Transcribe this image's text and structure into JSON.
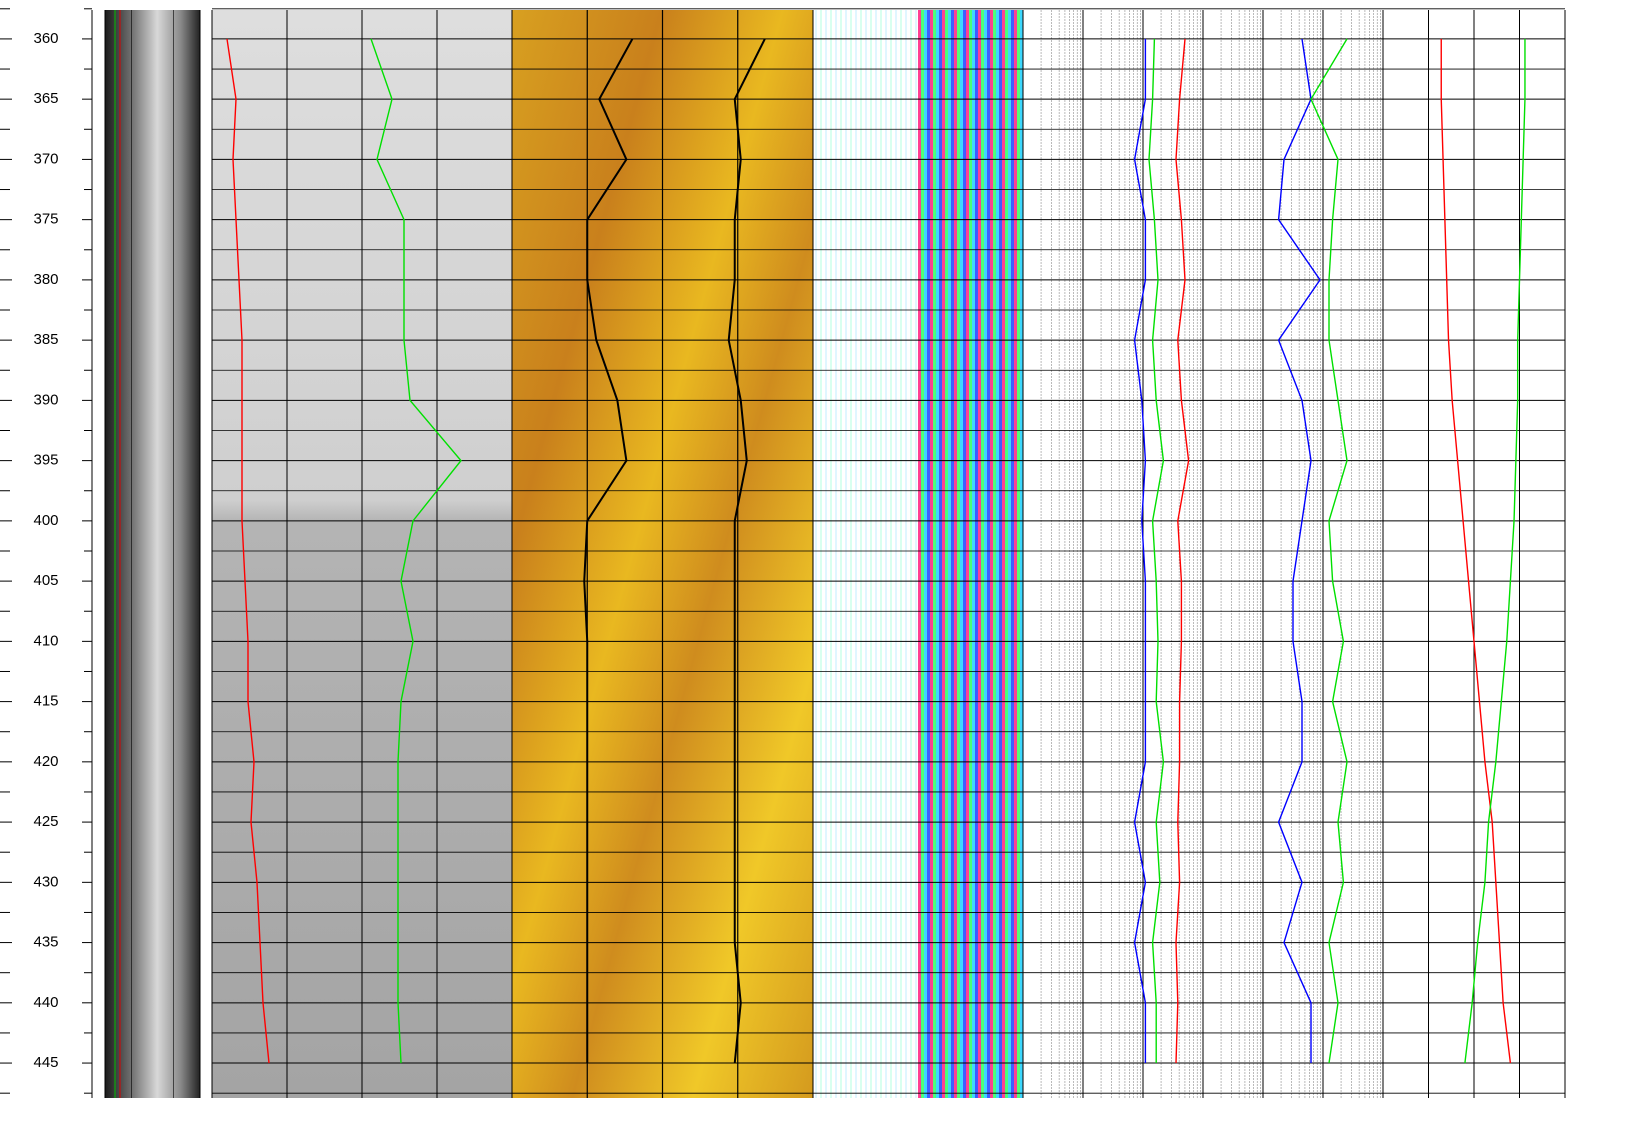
{
  "chart_data": {
    "type": "well-log",
    "ylim": [
      357.6,
      447.9
    ],
    "yticks": [
      360,
      365,
      370,
      375,
      380,
      385,
      390,
      395,
      400,
      405,
      410,
      415,
      420,
      425,
      430,
      435,
      440,
      445
    ],
    "minor_yticks": [
      357.5,
      362.5,
      367.5,
      372.5,
      377.5,
      382.5,
      387.5,
      392.5,
      397.5,
      402.5,
      407.5,
      412.5,
      417.5,
      422.5,
      427.5,
      432.5,
      437.5,
      442.5,
      447.5
    ],
    "xlim": [
      0,
      1
    ],
    "grid": true,
    "depths": [
      360,
      365,
      370,
      375,
      380,
      385,
      390,
      395,
      400,
      405,
      410,
      415,
      420,
      425,
      430,
      435,
      440,
      445
    ],
    "series": [
      {
        "track": 2,
        "color": "#ff0000",
        "values": [
          0.05,
          0.08,
          0.07,
          0.08,
          0.09,
          0.1,
          0.1,
          0.1,
          0.1,
          0.11,
          0.12,
          0.12,
          0.14,
          0.13,
          0.15,
          0.16,
          0.17,
          0.19
        ]
      },
      {
        "track": 2,
        "color": "#00e000",
        "values": [
          0.53,
          0.6,
          0.55,
          0.64,
          0.64,
          0.64,
          0.66,
          0.83,
          0.67,
          0.63,
          0.67,
          0.63,
          0.62,
          0.62,
          0.62,
          0.62,
          0.62,
          0.63
        ]
      },
      {
        "track": 3,
        "color": "#000000",
        "values": [
          0.4,
          0.29,
          0.38,
          0.25,
          0.25,
          0.28,
          0.35,
          0.38,
          0.25,
          0.24,
          0.25,
          0.25,
          0.25,
          0.25,
          0.25,
          0.25,
          0.25,
          0.25
        ]
      },
      {
        "track": 3,
        "color": "#000000",
        "values": [
          0.84,
          0.74,
          0.76,
          0.74,
          0.74,
          0.72,
          0.76,
          0.78,
          0.74,
          0.74,
          0.74,
          0.74,
          0.74,
          0.74,
          0.74,
          0.74,
          0.76,
          0.74
        ]
      },
      {
        "track": 5,
        "color": "#0000ff",
        "values": [
          0.68,
          0.68,
          0.62,
          0.68,
          0.68,
          0.62,
          0.66,
          0.68,
          0.66,
          0.68,
          0.68,
          0.68,
          0.68,
          0.62,
          0.68,
          0.62,
          0.68,
          0.68
        ]
      },
      {
        "track": 5,
        "color": "#00e000",
        "values": [
          0.73,
          0.72,
          0.7,
          0.73,
          0.75,
          0.72,
          0.74,
          0.78,
          0.72,
          0.74,
          0.75,
          0.74,
          0.78,
          0.74,
          0.76,
          0.72,
          0.74,
          0.74
        ]
      },
      {
        "track": 5,
        "color": "#ff0000",
        "values": [
          0.9,
          0.87,
          0.85,
          0.88,
          0.9,
          0.86,
          0.88,
          0.92,
          0.86,
          0.88,
          0.88,
          0.87,
          0.87,
          0.86,
          0.87,
          0.85,
          0.86,
          0.85
        ]
      },
      {
        "track": 6,
        "color": "#0000ff",
        "values": [
          0.55,
          0.6,
          0.45,
          0.42,
          0.65,
          0.42,
          0.55,
          0.6,
          0.55,
          0.5,
          0.5,
          0.55,
          0.55,
          0.42,
          0.55,
          0.45,
          0.6,
          0.6
        ]
      },
      {
        "track": 6,
        "color": "#00e000",
        "values": [
          0.8,
          0.6,
          0.75,
          0.72,
          0.7,
          0.7,
          0.75,
          0.8,
          0.7,
          0.72,
          0.78,
          0.72,
          0.8,
          0.75,
          0.78,
          0.7,
          0.75,
          0.7
        ]
      },
      {
        "track": 7,
        "color": "#ff0000",
        "values": [
          0.32,
          0.32,
          0.33,
          0.34,
          0.35,
          0.36,
          0.38,
          0.41,
          0.44,
          0.47,
          0.5,
          0.53,
          0.56,
          0.6,
          0.62,
          0.64,
          0.66,
          0.7
        ]
      },
      {
        "track": 7,
        "color": "#00e000",
        "values": [
          0.78,
          0.78,
          0.77,
          0.76,
          0.75,
          0.74,
          0.74,
          0.73,
          0.72,
          0.7,
          0.68,
          0.65,
          0.62,
          0.58,
          0.56,
          0.52,
          0.49,
          0.45
        ]
      }
    ]
  }
}
